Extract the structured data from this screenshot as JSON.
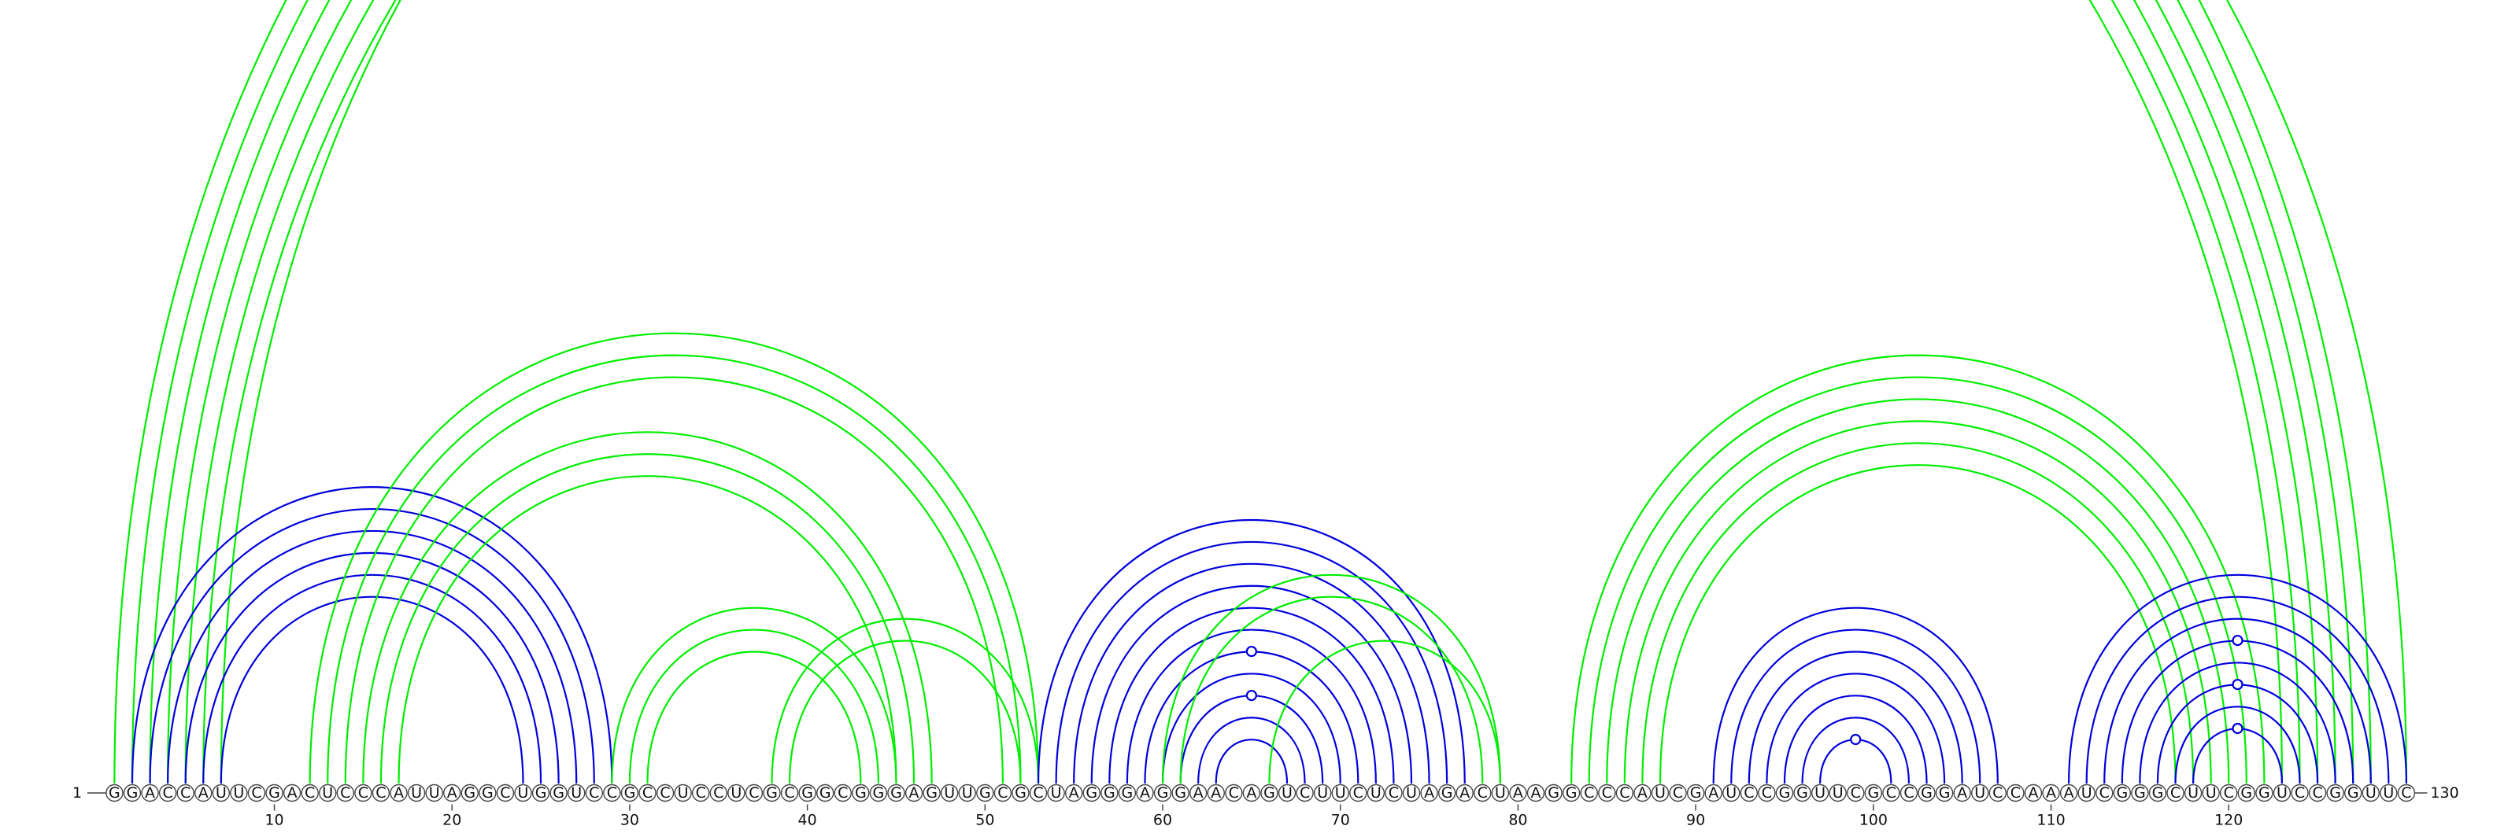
{
  "sequence": "GGACCAUUCGACUCCCAUUAGGCUGGUCCGCCUCCUCGCGGCGGGAGUUGCGCUAGGGAGGAACAGUCUUCUCUAGACUAAGGCCCAUCGAUCCGGUUCGCCGGAUCCAAAUCGGGCUUCGGUCCGGUUC",
  "start_label": "1",
  "end_label": "130",
  "tick_labels": [
    "10",
    "20",
    "30",
    "40",
    "50",
    "60",
    "70",
    "80",
    "90",
    "100",
    "110",
    "120"
  ],
  "colors": {
    "green": "#00ee00",
    "blue": "#0000dd",
    "circle_stroke": "#444444"
  },
  "arc_groups": [
    {
      "name": "outer-long",
      "color": "green",
      "pairs": [
        [
          1,
          128
        ],
        [
          2,
          127
        ],
        [
          3,
          126
        ],
        [
          4,
          125
        ],
        [
          5,
          124
        ],
        [
          6,
          123
        ],
        [
          7,
          130
        ]
      ]
    },
    {
      "name": "left-blue-helix",
      "color": "blue",
      "pairs": [
        [
          2,
          29
        ],
        [
          3,
          28
        ],
        [
          4,
          27
        ],
        [
          5,
          26
        ],
        [
          6,
          25
        ],
        [
          7,
          24
        ]
      ]
    },
    {
      "name": "green-12-53",
      "color": "green",
      "pairs": [
        [
          12,
          53
        ],
        [
          13,
          52
        ],
        [
          14,
          51
        ]
      ]
    },
    {
      "name": "green-15-47",
      "color": "green",
      "pairs": [
        [
          15,
          47
        ],
        [
          16,
          46
        ],
        [
          17,
          45
        ]
      ]
    },
    {
      "name": "green-29-45",
      "color": "green",
      "pairs": [
        [
          29,
          45
        ],
        [
          30,
          44
        ],
        [
          31,
          43
        ]
      ]
    },
    {
      "name": "green-38-53",
      "color": "green",
      "pairs": [
        [
          38,
          53
        ],
        [
          39,
          52
        ]
      ]
    },
    {
      "name": "middle-blue-helix",
      "color": "blue",
      "pairs": [
        [
          53,
          77
        ],
        [
          54,
          76
        ],
        [
          55,
          75
        ],
        [
          56,
          74
        ],
        [
          57,
          73
        ],
        [
          58,
          72
        ],
        [
          59,
          71
        ],
        [
          60,
          70
        ],
        [
          61,
          69
        ],
        [
          62,
          68
        ],
        [
          63,
          67
        ]
      ]
    },
    {
      "name": "green-60-79",
      "color": "green",
      "pairs": [
        [
          60,
          79
        ],
        [
          61,
          78
        ]
      ]
    },
    {
      "name": "green-66-79",
      "color": "green",
      "pairs": [
        [
          66,
          79
        ]
      ]
    },
    {
      "name": "green-83-122",
      "color": "green",
      "pairs": [
        [
          83,
          122
        ],
        [
          84,
          121
        ],
        [
          85,
          120
        ],
        [
          86,
          119
        ],
        [
          87,
          118
        ],
        [
          88,
          117
        ]
      ]
    },
    {
      "name": "right-blue-helix",
      "color": "blue",
      "pairs": [
        [
          91,
          107
        ],
        [
          92,
          106
        ],
        [
          93,
          105
        ],
        [
          94,
          104
        ],
        [
          95,
          103
        ],
        [
          96,
          102
        ],
        [
          97,
          101
        ]
      ]
    },
    {
      "name": "far-right-blue-helix",
      "color": "blue",
      "pairs": [
        [
          111,
          130
        ],
        [
          112,
          129
        ],
        [
          113,
          128
        ],
        [
          114,
          127
        ],
        [
          115,
          126
        ],
        [
          116,
          125
        ],
        [
          117,
          124
        ],
        [
          118,
          123
        ]
      ]
    }
  ],
  "marks": [
    {
      "pair": [
        7,
        130
      ],
      "color": "green"
    },
    {
      "pair": [
        59,
        71
      ],
      "color": "blue"
    },
    {
      "pair": [
        61,
        69
      ],
      "color": "blue"
    },
    {
      "pair": [
        97,
        101
      ],
      "color": "blue"
    },
    {
      "pair": [
        114,
        127
      ],
      "color": "blue"
    },
    {
      "pair": [
        116,
        125
      ],
      "color": "blue"
    },
    {
      "pair": [
        118,
        123
      ],
      "color": "blue"
    }
  ]
}
